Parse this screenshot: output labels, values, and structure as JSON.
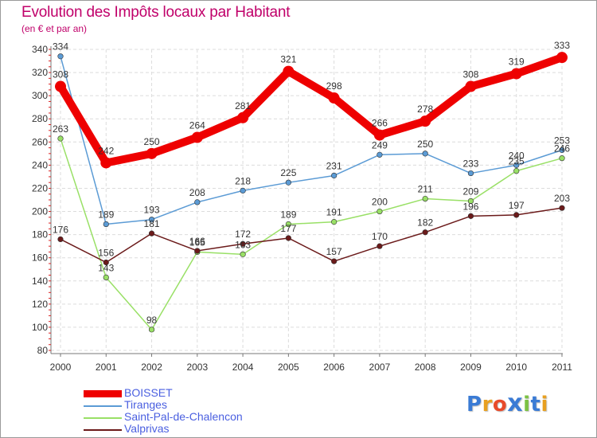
{
  "chart_data": {
    "type": "line",
    "title": "Evolution des Impôts locaux par Habitant",
    "subtitle": "(en € et par an)",
    "xlabel": "",
    "ylabel": "",
    "categories": [
      "2000",
      "2001",
      "2002",
      "2003",
      "2004",
      "2005",
      "2006",
      "2007",
      "2008",
      "2009",
      "2010",
      "2011"
    ],
    "ylim": [
      80,
      340
    ],
    "yticks": [
      80,
      100,
      120,
      140,
      160,
      180,
      200,
      220,
      240,
      260,
      280,
      300,
      320,
      340
    ],
    "grid": true,
    "series": [
      {
        "name": "BOISSET",
        "color": "#ee0000",
        "emphasis": true,
        "values": [
          308,
          242,
          250,
          264,
          281,
          321,
          298,
          266,
          278,
          308,
          319,
          333
        ]
      },
      {
        "name": "Tiranges",
        "color": "#5b9bd5",
        "emphasis": false,
        "values": [
          334,
          189,
          193,
          208,
          218,
          225,
          231,
          249,
          250,
          233,
          240,
          253
        ]
      },
      {
        "name": "Saint-Pal-de-Chalencon",
        "color": "#99e066",
        "emphasis": false,
        "values": [
          263,
          143,
          98,
          165,
          163,
          189,
          191,
          200,
          211,
          209,
          235,
          246
        ]
      },
      {
        "name": "Valprivas",
        "color": "#6b1a1a",
        "emphasis": false,
        "values": [
          176,
          156,
          181,
          166,
          172,
          177,
          157,
          170,
          182,
          196,
          197,
          203
        ]
      }
    ],
    "legend_position": "bottom-left"
  },
  "logo": {
    "letters": [
      "P",
      "r",
      "o",
      "x",
      "i",
      "t",
      "i"
    ],
    "colors": [
      "#3a7bd5",
      "#e8a020",
      "#e84a2a",
      "#3a7bd5",
      "#7cc242",
      "#3a7bd5",
      "#e8a020"
    ]
  }
}
